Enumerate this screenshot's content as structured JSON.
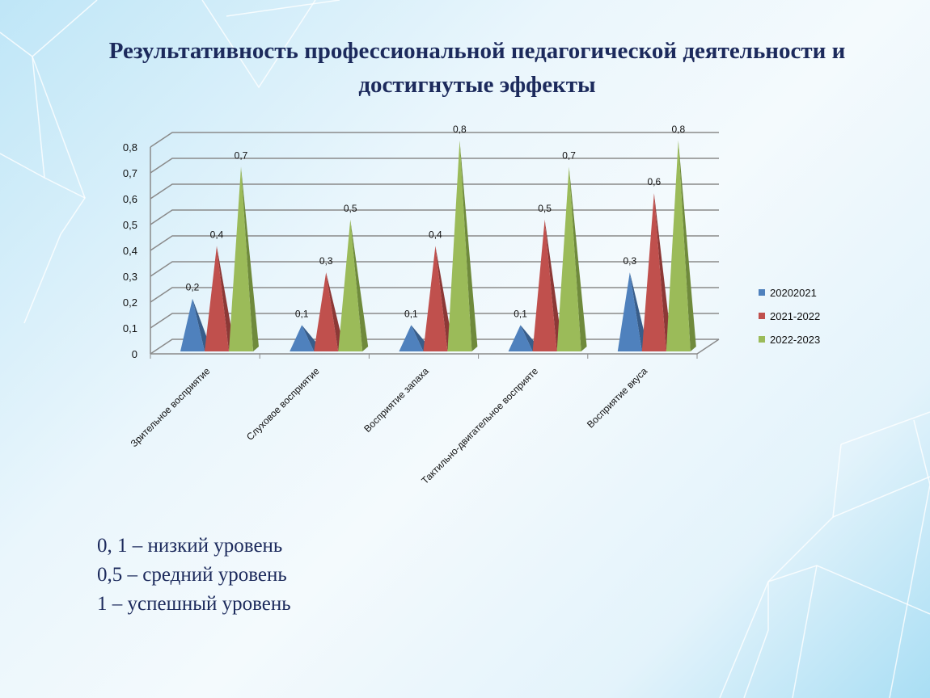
{
  "title": "Результативность профессиональной педагогической деятельности и достигнутые эффекты",
  "chart_data": {
    "type": "bar",
    "style": "3d-pyramid",
    "categories": [
      "Зрительное восприятие",
      "Слуховое восприятие",
      "Восприятие запаха",
      "Тактильно-двигательное восприяте",
      "Восприятие вкуса"
    ],
    "series": [
      {
        "name": "20202021",
        "color": "#4f81bd",
        "shade": "#385d8a",
        "values": [
          0.2,
          0.1,
          0.1,
          0.1,
          0.3
        ],
        "labels": [
          "0,2",
          "0,1",
          "0,1",
          "0,1",
          "0,3"
        ]
      },
      {
        "name": "2021-2022",
        "color": "#c0504d",
        "shade": "#8c3836",
        "values": [
          0.4,
          0.3,
          0.4,
          0.5,
          0.6
        ],
        "labels": [
          "0,4",
          "0,3",
          "0,4",
          "0,5",
          "0,6"
        ]
      },
      {
        "name": "2022-2023",
        "color": "#9bbb59",
        "shade": "#6f8a3c",
        "values": [
          0.7,
          0.5,
          0.8,
          0.7,
          0.8
        ],
        "labels": [
          "0,7",
          "0,5",
          "0,8",
          "0,7",
          "0,8"
        ]
      }
    ],
    "yticks": [
      "0",
      "0,1",
      "0,2",
      "0,3",
      "0,4",
      "0,5",
      "0,6",
      "0,7",
      "0,8"
    ],
    "ylim": [
      0,
      0.8
    ],
    "grid": true,
    "legend": "right"
  },
  "notes": [
    "0, 1 – низкий уровень",
    "0,5 – средний уровень",
    "1 – успешный уровень"
  ]
}
